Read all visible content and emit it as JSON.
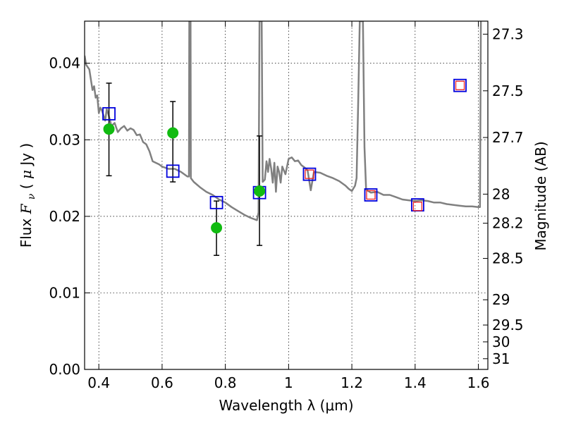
{
  "chart_data": {
    "type": "scatter",
    "xlabel": "Wavelength  λ (μm)",
    "ylabel_left": "Flux  F_ν  ( μJy )",
    "ylabel_right": "Magnitude (AB)",
    "xlim": [
      0.355,
      1.63
    ],
    "ylim": [
      0.0,
      0.0455
    ],
    "grid": true,
    "x_ticks": [
      {
        "value": 0.4,
        "label": "0.4"
      },
      {
        "value": 0.6,
        "label": "0.6"
      },
      {
        "value": 0.8,
        "label": "0.8"
      },
      {
        "value": 1.0,
        "label": "1"
      },
      {
        "value": 1.2,
        "label": "1.2"
      },
      {
        "value": 1.4,
        "label": "1.4"
      },
      {
        "value": 1.6,
        "label": "1.6"
      }
    ],
    "y_ticks": [
      {
        "value": 0.0,
        "label": "0.00"
      },
      {
        "value": 0.01,
        "label": "0.01"
      },
      {
        "value": 0.02,
        "label": "0.02"
      },
      {
        "value": 0.03,
        "label": "0.03"
      },
      {
        "value": 0.04,
        "label": "0.04"
      }
    ],
    "mag_ticks": [
      {
        "label": "27.3",
        "flux": 0.0438
      },
      {
        "label": "27.5",
        "flux": 0.0364
      },
      {
        "label": "27.7",
        "flux": 0.0303
      },
      {
        "label": "28",
        "flux": 0.0229
      },
      {
        "label": "28.2",
        "flux": 0.0191
      },
      {
        "label": "28.5",
        "flux": 0.0145
      },
      {
        "label": "29",
        "flux": 0.0091
      },
      {
        "label": "29.5",
        "flux": 0.0058
      },
      {
        "label": "30",
        "flux": 0.0036
      },
      {
        "label": "31",
        "flux": 0.0014
      }
    ],
    "series": [
      {
        "kind": "model_spectrum",
        "color": "#808080",
        "points": [
          [
            0.355,
            0.041
          ],
          [
            0.36,
            0.0398
          ],
          [
            0.37,
            0.0392
          ],
          [
            0.38,
            0.0365
          ],
          [
            0.385,
            0.037
          ],
          [
            0.39,
            0.0355
          ],
          [
            0.395,
            0.0358
          ],
          [
            0.4,
            0.0335
          ],
          [
            0.405,
            0.0342
          ],
          [
            0.41,
            0.0338
          ],
          [
            0.42,
            0.0325
          ],
          [
            0.425,
            0.034
          ],
          [
            0.43,
            0.0334
          ],
          [
            0.44,
            0.0318
          ],
          [
            0.45,
            0.0322
          ],
          [
            0.46,
            0.031
          ],
          [
            0.47,
            0.0315
          ],
          [
            0.48,
            0.0318
          ],
          [
            0.49,
            0.0312
          ],
          [
            0.5,
            0.0315
          ],
          [
            0.51,
            0.0313
          ],
          [
            0.52,
            0.0306
          ],
          [
            0.53,
            0.0307
          ],
          [
            0.54,
            0.0297
          ],
          [
            0.55,
            0.0294
          ],
          [
            0.56,
            0.0285
          ],
          [
            0.57,
            0.0272
          ],
          [
            0.58,
            0.027
          ],
          [
            0.59,
            0.0268
          ],
          [
            0.6,
            0.0265
          ],
          [
            0.62,
            0.0262
          ],
          [
            0.64,
            0.0262
          ],
          [
            0.66,
            0.0258
          ],
          [
            0.68,
            0.0252
          ],
          [
            0.685,
            0.0252
          ],
          [
            0.686,
            0.0455
          ],
          [
            0.69,
            0.0455
          ],
          [
            0.691,
            0.025
          ],
          [
            0.7,
            0.0245
          ],
          [
            0.72,
            0.0238
          ],
          [
            0.74,
            0.0232
          ],
          [
            0.76,
            0.0228
          ],
          [
            0.78,
            0.0222
          ],
          [
            0.8,
            0.0218
          ],
          [
            0.82,
            0.0212
          ],
          [
            0.84,
            0.0207
          ],
          [
            0.86,
            0.0202
          ],
          [
            0.88,
            0.0198
          ],
          [
            0.9,
            0.0195
          ],
          [
            0.905,
            0.0205
          ],
          [
            0.908,
            0.0455
          ],
          [
            0.915,
            0.0455
          ],
          [
            0.918,
            0.0245
          ],
          [
            0.925,
            0.0248
          ],
          [
            0.93,
            0.0272
          ],
          [
            0.935,
            0.0258
          ],
          [
            0.94,
            0.0275
          ],
          [
            0.945,
            0.0262
          ],
          [
            0.95,
            0.0244
          ],
          [
            0.955,
            0.027
          ],
          [
            0.96,
            0.0232
          ],
          [
            0.965,
            0.0265
          ],
          [
            0.97,
            0.0258
          ],
          [
            0.975,
            0.0244
          ],
          [
            0.98,
            0.0265
          ],
          [
            0.99,
            0.0255
          ],
          [
            1.0,
            0.0275
          ],
          [
            1.01,
            0.0277
          ],
          [
            1.02,
            0.0272
          ],
          [
            1.03,
            0.0273
          ],
          [
            1.04,
            0.0267
          ],
          [
            1.05,
            0.0264
          ],
          [
            1.06,
            0.026
          ],
          [
            1.07,
            0.0234
          ],
          [
            1.08,
            0.0258
          ],
          [
            1.1,
            0.0257
          ],
          [
            1.12,
            0.0253
          ],
          [
            1.14,
            0.025
          ],
          [
            1.16,
            0.0246
          ],
          [
            1.18,
            0.024
          ],
          [
            1.19,
            0.0236
          ],
          [
            1.2,
            0.0233
          ],
          [
            1.21,
            0.024
          ],
          [
            1.215,
            0.025
          ],
          [
            1.22,
            0.035
          ],
          [
            1.225,
            0.0455
          ],
          [
            1.235,
            0.0455
          ],
          [
            1.24,
            0.029
          ],
          [
            1.245,
            0.0235
          ],
          [
            1.26,
            0.0231
          ],
          [
            1.28,
            0.0232
          ],
          [
            1.3,
            0.0228
          ],
          [
            1.32,
            0.0228
          ],
          [
            1.34,
            0.0225
          ],
          [
            1.36,
            0.0222
          ],
          [
            1.38,
            0.0221
          ],
          [
            1.4,
            0.022
          ],
          [
            1.42,
            0.0221
          ],
          [
            1.44,
            0.022
          ],
          [
            1.46,
            0.0218
          ],
          [
            1.48,
            0.0218
          ],
          [
            1.5,
            0.0216
          ],
          [
            1.52,
            0.0215
          ],
          [
            1.54,
            0.0214
          ],
          [
            1.56,
            0.0213
          ],
          [
            1.58,
            0.0213
          ],
          [
            1.6,
            0.0212
          ],
          [
            1.605,
            0.0212
          ],
          [
            1.608,
            0.0455
          ]
        ]
      },
      {
        "kind": "observed_flux",
        "color": "#11bb11",
        "points": [
          {
            "x": 0.432,
            "y": 0.0314,
            "yerr_low": 0.0253,
            "yerr_high": 0.0374
          },
          {
            "x": 0.634,
            "y": 0.0309,
            "yerr_low": 0.0245,
            "yerr_high": 0.035
          },
          {
            "x": 0.772,
            "y": 0.0185,
            "yerr_low": 0.0149,
            "yerr_high": 0.022
          },
          {
            "x": 0.908,
            "y": 0.0233,
            "yerr_low": 0.0162,
            "yerr_high": 0.0305
          }
        ]
      },
      {
        "kind": "model_photometry",
        "color": "#0000dd",
        "points": [
          {
            "x": 0.432,
            "y": 0.0334
          },
          {
            "x": 0.634,
            "y": 0.0259
          },
          {
            "x": 0.772,
            "y": 0.0218
          },
          {
            "x": 0.908,
            "y": 0.0231
          },
          {
            "x": 1.066,
            "y": 0.0255
          },
          {
            "x": 1.26,
            "y": 0.0228
          },
          {
            "x": 1.408,
            "y": 0.0215
          },
          {
            "x": 1.542,
            "y": 0.0371
          }
        ]
      },
      {
        "kind": "nir_flux",
        "color": "#ee2222",
        "points": [
          {
            "x": 1.066,
            "y": 0.0255
          },
          {
            "x": 1.26,
            "y": 0.0228
          },
          {
            "x": 1.408,
            "y": 0.0213
          },
          {
            "x": 1.542,
            "y": 0.0371
          }
        ]
      }
    ]
  }
}
